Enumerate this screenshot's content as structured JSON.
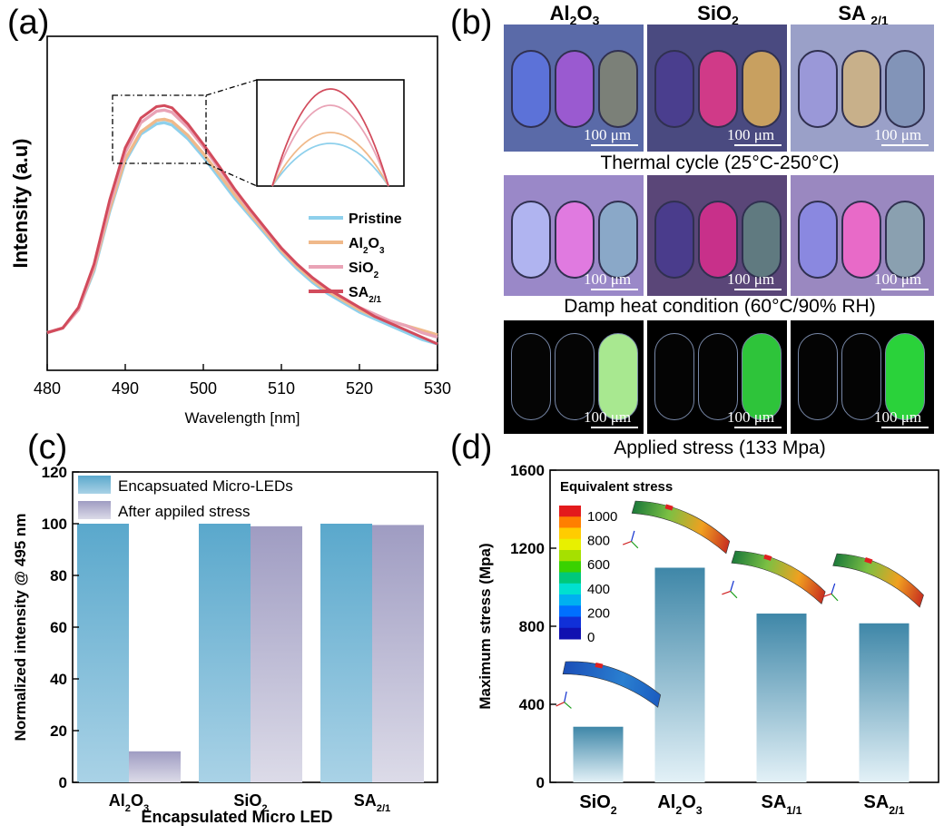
{
  "panel_labels": {
    "a": "(a)",
    "b": "(b)",
    "c": "(c)",
    "d": "(d)"
  },
  "panel_b": {
    "columns": [
      {
        "id": "al2o3",
        "label": "Al",
        "sub1": "2",
        "mid": "O",
        "sub2": "3"
      },
      {
        "id": "sio2",
        "label": "SiO",
        "sub1": "2"
      },
      {
        "id": "sa21",
        "label": "SA",
        "sub1": "2/1"
      }
    ],
    "conditions": [
      "Thermal cycle (25°C-250°C)",
      "Damp heat condition (60°C/90% RH)",
      "Applied stress (133 Mpa)"
    ],
    "scale_bar": "100 μm"
  },
  "chart_data": [
    {
      "id": "a",
      "type": "line",
      "xlabel": "Wavelength [nm]",
      "ylabel": "Intensity (a.u)",
      "xlim": [
        480,
        530
      ],
      "xticks": [
        480,
        490,
        500,
        510,
        520,
        530
      ],
      "ylim": [
        0,
        1.05
      ],
      "yticks_shown": false,
      "legend_position": "center-right",
      "inset": "zoom of peak region around 490–500 nm",
      "series": [
        {
          "name": "Pristine",
          "sub": "",
          "color": "#8ed0ec",
          "x": [
            480,
            482,
            484,
            486,
            488,
            490,
            492,
            494,
            495,
            496,
            498,
            500,
            502,
            504,
            506,
            508,
            510,
            512,
            514,
            516,
            518,
            520,
            522,
            524,
            526,
            528,
            530
          ],
          "y": [
            0.03,
            0.05,
            0.13,
            0.3,
            0.56,
            0.78,
            0.9,
            0.945,
            0.95,
            0.94,
            0.88,
            0.8,
            0.71,
            0.62,
            0.54,
            0.46,
            0.38,
            0.31,
            0.25,
            0.2,
            0.16,
            0.12,
            0.09,
            0.06,
            0.03,
            0.0,
            -0.02
          ]
        },
        {
          "name": "Al",
          "sub": "2",
          "mid": "O",
          "sub2": "3",
          "color": "#f0b98a",
          "x": [
            480,
            482,
            484,
            486,
            488,
            490,
            492,
            494,
            495,
            496,
            498,
            500,
            502,
            504,
            506,
            508,
            510,
            512,
            514,
            516,
            518,
            520,
            522,
            524,
            526,
            528,
            530
          ],
          "y": [
            0.03,
            0.05,
            0.13,
            0.31,
            0.57,
            0.79,
            0.91,
            0.96,
            0.965,
            0.955,
            0.895,
            0.815,
            0.725,
            0.635,
            0.55,
            0.47,
            0.39,
            0.32,
            0.26,
            0.21,
            0.17,
            0.13,
            0.1,
            0.08,
            0.06,
            0.04,
            0.02
          ]
        },
        {
          "name": "SiO",
          "sub": "2",
          "color": "#e9a3b6",
          "x": [
            480,
            482,
            484,
            486,
            488,
            490,
            492,
            494,
            495,
            496,
            498,
            500,
            502,
            504,
            506,
            508,
            510,
            512,
            514,
            516,
            518,
            520,
            522,
            524,
            526,
            528,
            530
          ],
          "y": [
            0.03,
            0.05,
            0.13,
            0.32,
            0.59,
            0.82,
            0.95,
            1.0,
            1.005,
            0.995,
            0.93,
            0.845,
            0.75,
            0.655,
            0.565,
            0.48,
            0.4,
            0.33,
            0.27,
            0.22,
            0.18,
            0.14,
            0.11,
            0.08,
            0.06,
            0.03,
            0.01
          ]
        },
        {
          "name": "SA",
          "sub": "2/1",
          "color": "#d24b5c",
          "x": [
            480,
            482,
            484,
            486,
            488,
            490,
            492,
            494,
            495,
            496,
            498,
            500,
            502,
            504,
            506,
            508,
            510,
            512,
            514,
            516,
            518,
            520,
            522,
            524,
            526,
            528,
            530
          ],
          "y": [
            0.03,
            0.05,
            0.14,
            0.33,
            0.61,
            0.84,
            0.97,
            1.02,
            1.025,
            1.015,
            0.945,
            0.855,
            0.76,
            0.66,
            0.57,
            0.485,
            0.4,
            0.33,
            0.27,
            0.22,
            0.18,
            0.14,
            0.1,
            0.07,
            0.04,
            0.01,
            -0.02
          ]
        }
      ]
    },
    {
      "id": "c",
      "type": "bar",
      "xlabel": "Encapsulated Micro LED",
      "ylabel": "Normalized intensity @ 495 nm",
      "ylim": [
        0,
        120
      ],
      "yticks": [
        0,
        20,
        40,
        60,
        80,
        100,
        120
      ],
      "categories": [
        {
          "label": "Al",
          "sub": "2",
          "mid": "O",
          "sub2": "3"
        },
        {
          "label": "SiO",
          "sub": "2"
        },
        {
          "label": "SA",
          "sub": "2/1"
        }
      ],
      "legend_position": "top-left",
      "series": [
        {
          "name": "Encapsuated Micro-LEDs",
          "color_top": "#5aa8cc",
          "color_bottom": "#a9d2e6",
          "values": [
            100,
            100,
            100
          ]
        },
        {
          "name": "After appiled stress",
          "color_top": "#9f9cc2",
          "color_bottom": "#dcdbe8",
          "values": [
            12,
            99,
            99.5
          ]
        }
      ]
    },
    {
      "id": "d",
      "type": "bar",
      "ylabel": "Maximum stress (Mpa)",
      "ylim": [
        0,
        1600
      ],
      "yticks": [
        0,
        400,
        800,
        1200,
        1600
      ],
      "categories": [
        {
          "label": "SiO",
          "sub": "2"
        },
        {
          "label": "Al",
          "sub": "2",
          "mid": "O",
          "sub2": "3"
        },
        {
          "label": "SA",
          "sub": "1/1"
        },
        {
          "label": "SA",
          "sub": "2/1"
        }
      ],
      "values": [
        285,
        1100,
        865,
        815
      ],
      "color_top": "#3f87a8",
      "color_bottom": "#e3f1f7",
      "colorbar": {
        "title": "Equivalent stress",
        "ticks": [
          "1000",
          "800",
          "600",
          "400",
          "200",
          "0"
        ],
        "colors": [
          "#e31a1c",
          "#ff7f00",
          "#ffcc00",
          "#e8f000",
          "#a6e000",
          "#39d200",
          "#00c87a",
          "#00e0d0",
          "#00b0f0",
          "#0070ff",
          "#1030d8",
          "#1010b0"
        ]
      }
    }
  ]
}
